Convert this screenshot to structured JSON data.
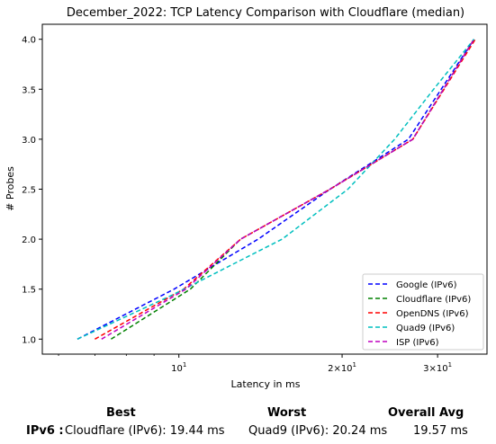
{
  "chart_data": {
    "type": "line",
    "title": "December_2022: TCP Latency Comparison with Cloudflare (median)",
    "xlabel": "Latency in ms",
    "ylabel": "# Probes",
    "xscale": "log",
    "xlim": [
      5.6,
      37
    ],
    "ylim": [
      0.85,
      4.15
    ],
    "xticks": [
      {
        "value": 10,
        "base": "10",
        "exp": "1",
        "mult": ""
      },
      {
        "value": 20,
        "base": "10",
        "exp": "1",
        "mult": "2×"
      },
      {
        "value": 30,
        "base": "10",
        "exp": "1",
        "mult": "3×"
      }
    ],
    "yticks": [
      "1.0",
      "1.5",
      "2.0",
      "2.5",
      "3.0",
      "3.5",
      "4.0"
    ],
    "grid": false,
    "legend_position": "lower-right",
    "series": [
      {
        "name": "Google (IPv6)",
        "color": "#0000ff",
        "points": [
          [
            6.5,
            1.0
          ],
          [
            9.8,
            1.5
          ],
          [
            14.0,
            2.0
          ],
          [
            19.0,
            2.5
          ],
          [
            26.5,
            3.0
          ],
          [
            35.0,
            4.0
          ]
        ]
      },
      {
        "name": "Cloudflare (IPv6)",
        "color": "#008000",
        "points": [
          [
            7.5,
            1.0
          ],
          [
            10.5,
            1.5
          ],
          [
            13.0,
            2.0
          ],
          [
            19.0,
            2.5
          ],
          [
            27.0,
            3.0
          ],
          [
            35.0,
            4.0
          ]
        ]
      },
      {
        "name": "OpenDNS (IPv6)",
        "color": "#ff0000",
        "points": [
          [
            7.0,
            1.0
          ],
          [
            10.2,
            1.5
          ],
          [
            13.0,
            2.0
          ],
          [
            19.0,
            2.5
          ],
          [
            27.0,
            3.0
          ],
          [
            35.2,
            4.0
          ]
        ]
      },
      {
        "name": "Quad9 (IPv6)",
        "color": "#00bfbf",
        "points": [
          [
            6.5,
            1.0
          ],
          [
            9.8,
            1.45
          ],
          [
            15.5,
            2.0
          ],
          [
            20.5,
            2.5
          ],
          [
            25.0,
            3.0
          ],
          [
            29.5,
            3.5
          ],
          [
            35.0,
            4.0
          ]
        ]
      },
      {
        "name": "ISP (IPv6)",
        "color": "#bf00bf",
        "points": [
          [
            7.2,
            1.0
          ],
          [
            10.3,
            1.5
          ],
          [
            13.0,
            2.0
          ],
          [
            19.0,
            2.5
          ],
          [
            27.0,
            3.0
          ],
          [
            35.0,
            4.0
          ]
        ]
      }
    ]
  },
  "summary": {
    "headers": {
      "best": "Best",
      "worst": "Worst",
      "avg": "Overall Avg"
    },
    "row_label": "IPv6 :",
    "best": "Cloudflare (IPv6): 19.44 ms",
    "worst": "Quad9 (IPv6): 20.24 ms",
    "avg": "19.57 ms"
  }
}
